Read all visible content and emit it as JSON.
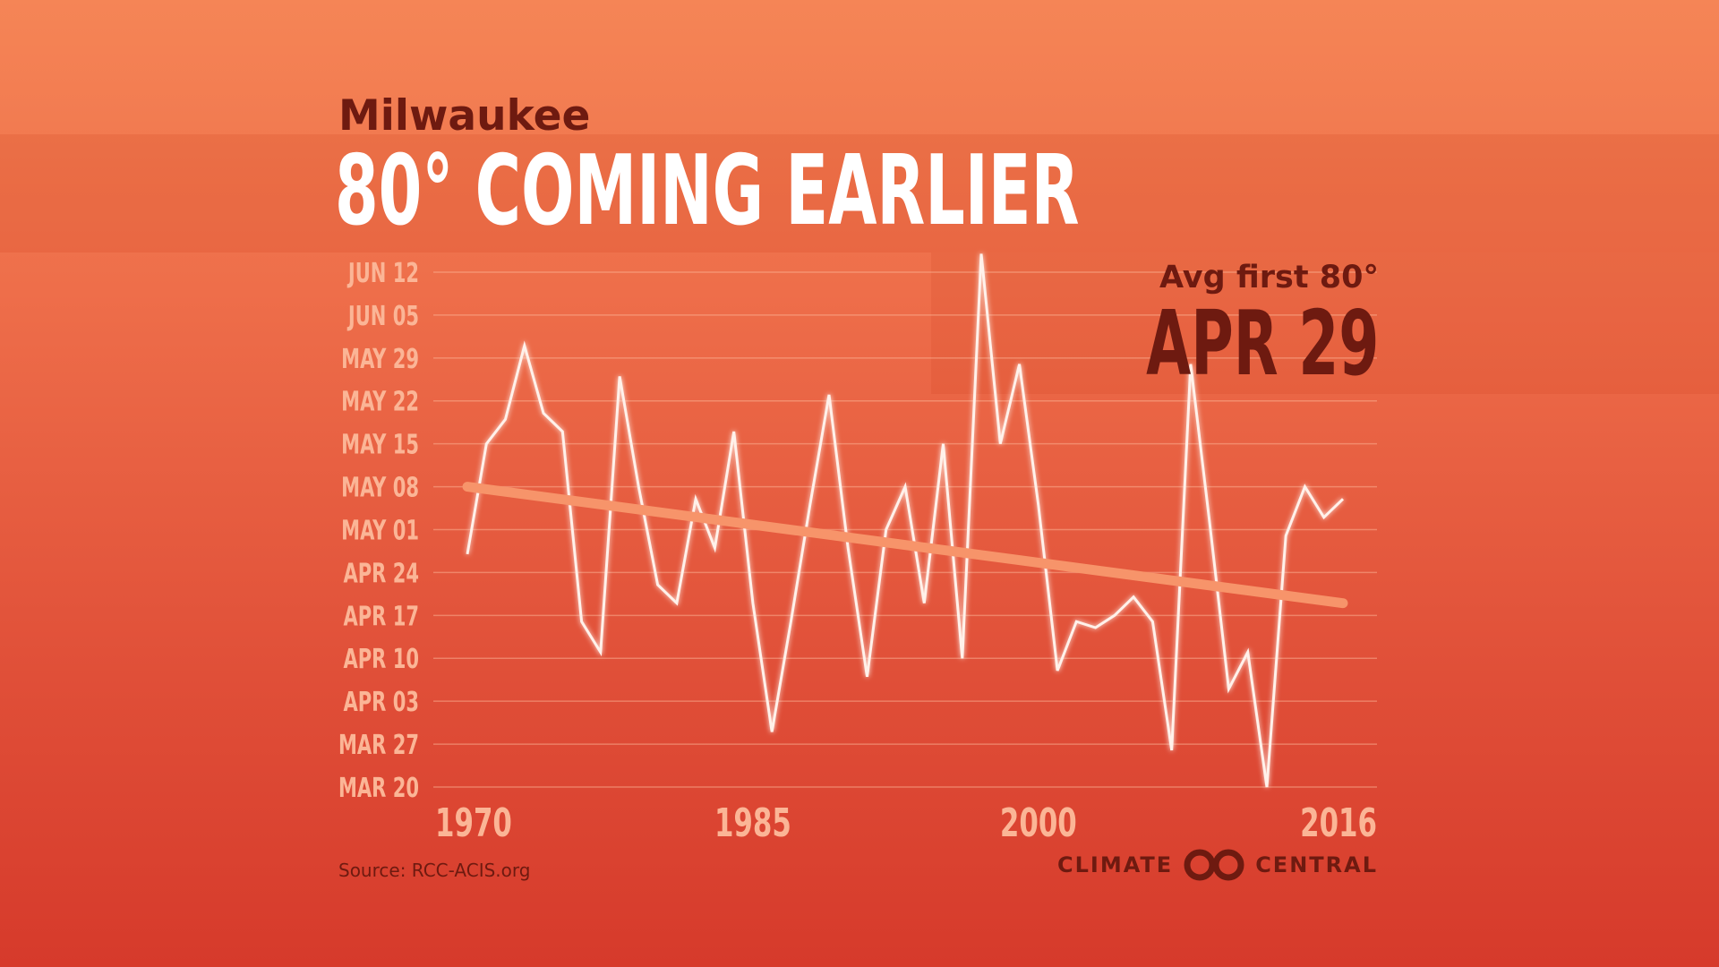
{
  "header": {
    "city": "Milwaukee",
    "headline": "80° COMING EARLIER"
  },
  "callout": {
    "label": "Avg first 80°",
    "value": "APR 29"
  },
  "footer": {
    "source": "Source: RCC-ACIS.org",
    "logo_left": "CLIMATE",
    "logo_right": "CENTRAL"
  },
  "colors": {
    "background_top": "#f58556",
    "background_bottom": "#d63a2b",
    "line": "#fff1ea",
    "trend": "#f7946a",
    "dark_text": "#6e1a10",
    "tick": "#fbb596"
  },
  "chart_data": {
    "type": "line",
    "title": "80° COMING EARLIER",
    "subtitle": "Milwaukee",
    "xlabel": "",
    "ylabel": "",
    "x_ticks": [
      "1970",
      "1985",
      "2000",
      "2016"
    ],
    "x_tick_values": [
      1970,
      1985,
      2000,
      2016
    ],
    "xlim": [
      1970,
      2016
    ],
    "y_tick_labels": [
      "MAR 20",
      "MAR 27",
      "APR 03",
      "APR 10",
      "APR 17",
      "APR 24",
      "MAY 01",
      "MAY 08",
      "MAY 15",
      "MAY 22",
      "MAY 29",
      "JUN 05",
      "JUN 12"
    ],
    "y_tick_values": [
      79,
      86,
      93,
      100,
      107,
      114,
      121,
      128,
      135,
      142,
      149,
      156,
      163
    ],
    "ylim": [
      79,
      163
    ],
    "y_unit": "day of year",
    "grid": true,
    "series": [
      {
        "x": [
          1970,
          1971,
          1972,
          1973,
          1974,
          1975,
          1976,
          1977,
          1978,
          1979,
          1980,
          1981,
          1982,
          1983,
          1984,
          1985,
          1986,
          1987,
          1988,
          1989,
          1990,
          1991,
          1992,
          1993,
          1994,
          1995,
          1996,
          1997,
          1998,
          1999,
          2000,
          2001,
          2002,
          2003,
          2004,
          2005,
          2006,
          2007,
          2008,
          2009,
          2010,
          2011,
          2012,
          2013,
          2014,
          2015,
          2016
        ],
        "values": [
          117,
          135,
          139,
          151,
          140,
          137,
          106,
          101,
          146,
          128,
          112,
          109,
          126,
          118,
          137,
          109,
          88,
          106,
          125,
          143,
          118,
          97,
          121,
          128,
          109,
          135,
          100,
          166,
          135,
          148,
          125,
          98,
          106,
          105,
          107,
          110,
          106,
          85,
          148,
          122,
          95,
          101,
          79,
          120,
          128,
          123,
          126
        ]
      },
      {
        "name": "trend",
        "x": [
          1970,
          2016
        ],
        "values": [
          128,
          109
        ]
      }
    ]
  }
}
